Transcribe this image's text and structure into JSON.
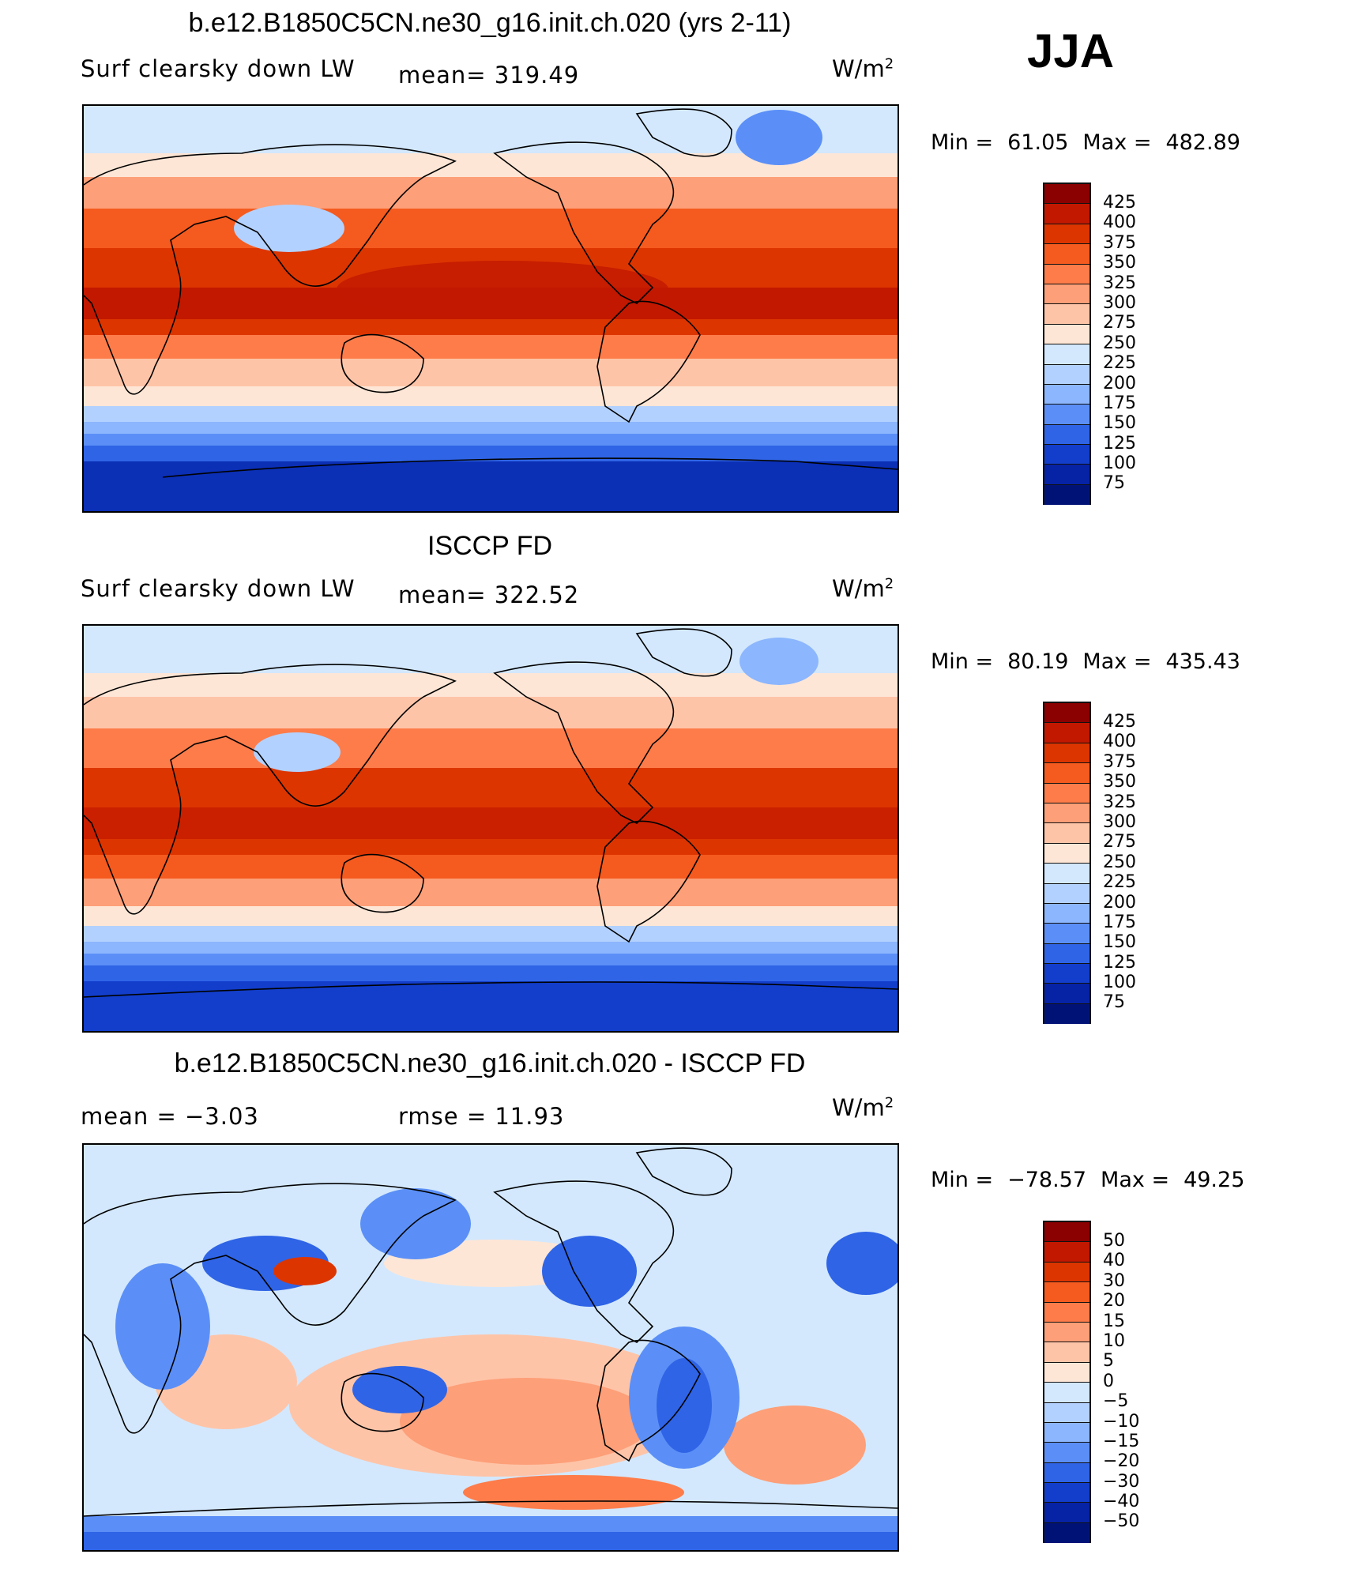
{
  "season": "JJA",
  "panels": [
    {
      "title": "b.e12.B1850C5CN.ne30_g16.init.ch.020 (yrs 2-11)",
      "left_label": "Surf clearsky down LW",
      "mid_label": "mean= 319.49",
      "units": "W/m",
      "units_sup": "2",
      "minmax": {
        "min_label": "Min =",
        "min": "61.05",
        "max_label": "Max =",
        "max": "482.89"
      },
      "levels": [
        "425",
        "400",
        "375",
        "350",
        "325",
        "300",
        "275",
        "250",
        "225",
        "200",
        "175",
        "150",
        "125",
        "100",
        "75"
      ],
      "colors": [
        "#8b0000",
        "#c21800",
        "#dd3500",
        "#f55a1e",
        "#fd7c4a",
        "#fd9f78",
        "#fec4a8",
        "#fee6d6",
        "#d3e8fd",
        "#b3d1fe",
        "#8cb6fd",
        "#5b8ff7",
        "#2f64e6",
        "#123ecb",
        "#0622a5",
        "#011277"
      ]
    },
    {
      "title": "ISCCP FD",
      "left_label": "Surf clearsky down LW",
      "mid_label": "mean= 322.52",
      "units": "W/m",
      "units_sup": "2",
      "minmax": {
        "min_label": "Min =",
        "min": "80.19",
        "max_label": "Max =",
        "max": "435.43"
      },
      "levels": [
        "425",
        "400",
        "375",
        "350",
        "325",
        "300",
        "275",
        "250",
        "225",
        "200",
        "175",
        "150",
        "125",
        "100",
        "75"
      ],
      "colors": [
        "#8b0000",
        "#c21800",
        "#dd3500",
        "#f55a1e",
        "#fd7c4a",
        "#fd9f78",
        "#fec4a8",
        "#fee6d6",
        "#d3e8fd",
        "#b3d1fe",
        "#8cb6fd",
        "#5b8ff7",
        "#2f64e6",
        "#123ecb",
        "#0622a5",
        "#011277"
      ]
    },
    {
      "title": "b.e12.B1850C5CN.ne30_g16.init.ch.020 - ISCCP FD",
      "left_label": "mean =  −3.03",
      "mid_label": "rmse =   11.93",
      "units": "W/m",
      "units_sup": "2",
      "minmax": {
        "min_label": "Min =",
        "min": "−78.57",
        "max_label": "Max =",
        "max": "49.25"
      },
      "levels": [
        "50",
        "40",
        "30",
        "20",
        "15",
        "10",
        "5",
        "0",
        "−5",
        "−10",
        "−15",
        "−20",
        "−30",
        "−40",
        "−50"
      ],
      "colors": [
        "#8b0000",
        "#c21800",
        "#dd3500",
        "#f55a1e",
        "#fd7c4a",
        "#fd9f78",
        "#fec4a8",
        "#fee6d6",
        "#d3e8fd",
        "#b3d1fe",
        "#8cb6fd",
        "#5b8ff7",
        "#2f64e6",
        "#123ecb",
        "#0622a5",
        "#011277"
      ]
    }
  ],
  "colors": {
    "ocean_deep": "#0b2fb5",
    "coastline": "#000000"
  }
}
